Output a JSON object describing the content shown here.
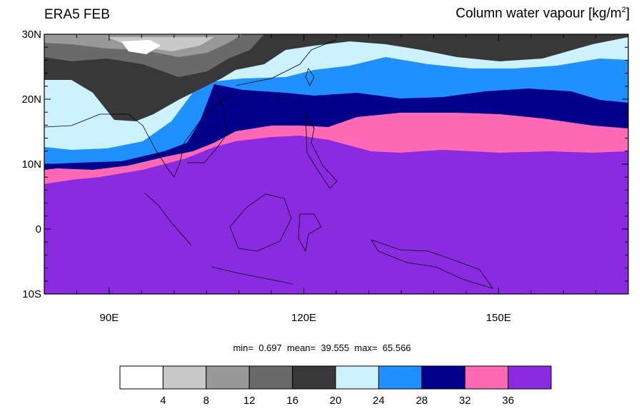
{
  "title_left": "ERA5 FEB",
  "title_right": {
    "text": "Column water vapour [kg/m",
    "sup": "2",
    "close": "]"
  },
  "stats": {
    "min_label": "min=",
    "min": "0.697",
    "mean_label": "mean=",
    "mean": "39.555",
    "max_label": "max=",
    "max": "65.566"
  },
  "map": {
    "lon_range": [
      80,
      170
    ],
    "lat_range": [
      -10,
      30
    ],
    "lat_ticks": [
      {
        "value": 30,
        "label": "30N"
      },
      {
        "value": 20,
        "label": "20N"
      },
      {
        "value": 10,
        "label": "10N"
      },
      {
        "value": 0,
        "label": "0"
      },
      {
        "value": -10,
        "label": "10S"
      }
    ],
    "lon_ticks": [
      {
        "value": 90,
        "label": "90E"
      },
      {
        "value": 120,
        "label": "120E"
      },
      {
        "value": 150,
        "label": "150E"
      }
    ]
  },
  "colorbar": {
    "colors": [
      "#ffffff",
      "#c8c8c8",
      "#999999",
      "#6a6a6a",
      "#383838",
      "#cdf2ff",
      "#1e90ff",
      "#00008b",
      "#ff69b4",
      "#8a2be2"
    ],
    "labels": [
      "4",
      "8",
      "12",
      "16",
      "20",
      "24",
      "28",
      "32",
      "36"
    ]
  }
}
